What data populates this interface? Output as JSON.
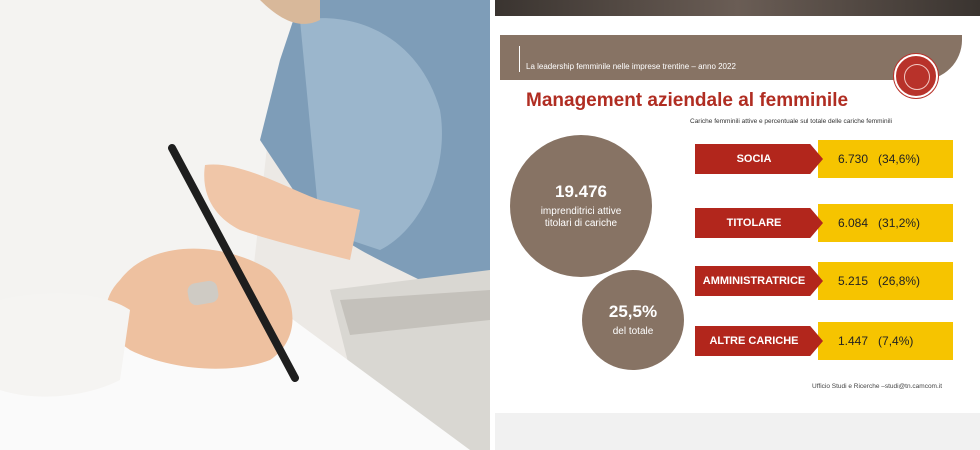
{
  "slide": {
    "header": "La leadership femminile nelle imprese trentine – anno 2022",
    "title": "Management aziendale al femminile",
    "subtitle": "Cariche femminili attive e percentuale sul totale delle cariche femminili",
    "total": {
      "value": "19.476",
      "label_line1": "imprenditrici attive",
      "label_line2": "titolari di cariche"
    },
    "share": {
      "value": "25,5%",
      "label": "del totale"
    },
    "rows": [
      {
        "label": "SOCIA",
        "value": "6.730",
        "percent": "(34,6%)"
      },
      {
        "label": "TITOLARE",
        "value": "6.084",
        "percent": "(31,2%)"
      },
      {
        "label": "AMMINISTRATRICE",
        "value": "5.215",
        "percent": "(26,8%)"
      },
      {
        "label": "ALTRE CARICHE",
        "value": "1.447",
        "percent": "(7,4%)"
      }
    ],
    "footer": "Ufficio Studi e Ricerche –studi@tn.camcom.it",
    "colors": {
      "brown": "#877364",
      "red": "#b2261c",
      "yellow": "#f6c400",
      "title_red": "#b02d22"
    }
  }
}
